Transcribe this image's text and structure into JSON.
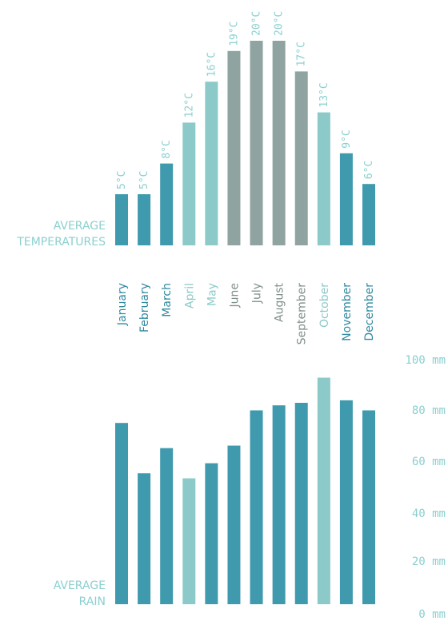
{
  "colors": {
    "dark": "#3f9aae",
    "light": "#8cc9c9",
    "gray": "#8fa3a1",
    "label": "#8ccfcf"
  },
  "chart_data": [
    {
      "type": "bar",
      "title": "AVERAGE TEMPERATURES",
      "title_lines": [
        "AVERAGE",
        "TEMPERATURES"
      ],
      "categories": [
        "January",
        "February",
        "March",
        "April",
        "May",
        "June",
        "July",
        "August",
        "September",
        "October",
        "November",
        "December"
      ],
      "values": [
        5,
        5,
        8,
        12,
        16,
        19,
        20,
        20,
        17,
        13,
        9,
        6
      ],
      "unit": "°C",
      "data_labels": [
        "5°C",
        "5°C",
        "8°C",
        "12°C",
        "16°C",
        "19°C",
        "20°C",
        "20°C",
        "17°C",
        "13°C",
        "9°C",
        "6°C"
      ],
      "season_color": [
        "dark",
        "dark",
        "dark",
        "light",
        "light",
        "gray",
        "gray",
        "gray",
        "gray",
        "light",
        "dark",
        "dark"
      ],
      "ylim": [
        0,
        20
      ],
      "grid": false,
      "legend": "none"
    },
    {
      "type": "bar",
      "title": "AVERAGE RAIN",
      "title_lines": [
        "AVERAGE",
        "RAIN"
      ],
      "categories": [
        "January",
        "February",
        "March",
        "April",
        "May",
        "June",
        "July",
        "August",
        "September",
        "October",
        "November",
        "December"
      ],
      "values": [
        72,
        52,
        62,
        50,
        56,
        63,
        77,
        79,
        80,
        90,
        81,
        77
      ],
      "unit": "mm",
      "season_color": [
        "dark",
        "dark",
        "dark",
        "light",
        "dark",
        "dark",
        "dark",
        "dark",
        "dark",
        "light",
        "dark",
        "dark"
      ],
      "yticks": [
        "100 mm",
        "80 mm",
        "60 mm",
        "40 mm",
        "20 mm",
        "0 mm"
      ],
      "ylim": [
        0,
        100
      ],
      "grid": false,
      "legend": "none"
    }
  ]
}
